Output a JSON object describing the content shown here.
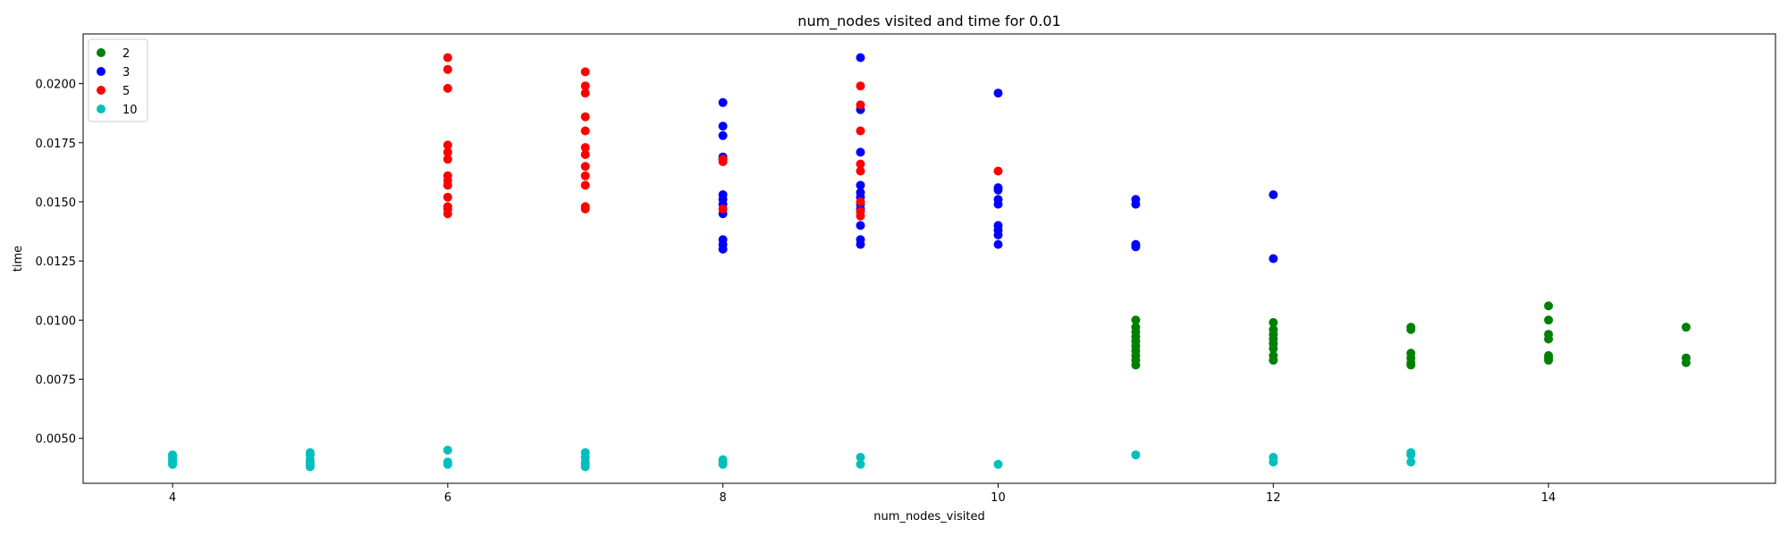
{
  "chart_data": {
    "type": "scatter",
    "title": "num_nodes visited and time for 0.01",
    "xlabel": "num_nodes_visited",
    "ylabel": "time",
    "xlim": [
      3.35,
      15.65
    ],
    "ylim": [
      0.0031,
      0.0221
    ],
    "xticks": [
      4,
      6,
      8,
      10,
      12,
      14
    ],
    "xtick_labels": [
      "4",
      "6",
      "8",
      "10",
      "12",
      "14"
    ],
    "yticks": [
      0.005,
      0.0075,
      0.01,
      0.0125,
      0.015,
      0.0175,
      0.02
    ],
    "ytick_labels": [
      "0.0050",
      "0.0075",
      "0.0100",
      "0.0125",
      "0.0150",
      "0.0175",
      "0.0200"
    ],
    "grid": false,
    "legend_position": "top-left",
    "series": [
      {
        "name": "2",
        "color": "#008000",
        "points": [
          [
            11,
            0.01
          ],
          [
            11,
            0.0097
          ],
          [
            11,
            0.0095
          ],
          [
            11,
            0.0093
          ],
          [
            11,
            0.0091
          ],
          [
            11,
            0.0089
          ],
          [
            11,
            0.0087
          ],
          [
            11,
            0.0085
          ],
          [
            11,
            0.0083
          ],
          [
            11,
            0.0081
          ],
          [
            12,
            0.0099
          ],
          [
            12,
            0.0096
          ],
          [
            12,
            0.0094
          ],
          [
            12,
            0.0092
          ],
          [
            12,
            0.009
          ],
          [
            12,
            0.0088
          ],
          [
            12,
            0.0085
          ],
          [
            12,
            0.0083
          ],
          [
            13,
            0.0097
          ],
          [
            13,
            0.0096
          ],
          [
            13,
            0.0086
          ],
          [
            13,
            0.0084
          ],
          [
            13,
            0.0082
          ],
          [
            13,
            0.0081
          ],
          [
            14,
            0.0106
          ],
          [
            14,
            0.01
          ],
          [
            14,
            0.0094
          ],
          [
            14,
            0.0092
          ],
          [
            14,
            0.0085
          ],
          [
            14,
            0.0084
          ],
          [
            14,
            0.0083
          ],
          [
            15,
            0.0097
          ],
          [
            15,
            0.0084
          ],
          [
            15,
            0.0082
          ]
        ]
      },
      {
        "name": "3",
        "color": "#0000ff",
        "points": [
          [
            8,
            0.0192
          ],
          [
            8,
            0.0182
          ],
          [
            8,
            0.0178
          ],
          [
            8,
            0.0169
          ],
          [
            8,
            0.0168
          ],
          [
            8,
            0.0153
          ],
          [
            8,
            0.0151
          ],
          [
            8,
            0.0149
          ],
          [
            8,
            0.0145
          ],
          [
            8,
            0.0134
          ],
          [
            8,
            0.0132
          ],
          [
            8,
            0.013
          ],
          [
            9,
            0.0211
          ],
          [
            9,
            0.0189
          ],
          [
            9,
            0.0171
          ],
          [
            9,
            0.0157
          ],
          [
            9,
            0.0154
          ],
          [
            9,
            0.0152
          ],
          [
            9,
            0.0149
          ],
          [
            9,
            0.0147
          ],
          [
            9,
            0.014
          ],
          [
            9,
            0.0134
          ],
          [
            9,
            0.0132
          ],
          [
            10,
            0.0196
          ],
          [
            10,
            0.0156
          ],
          [
            10,
            0.0155
          ],
          [
            10,
            0.0151
          ],
          [
            10,
            0.0149
          ],
          [
            10,
            0.014
          ],
          [
            10,
            0.0138
          ],
          [
            10,
            0.0136
          ],
          [
            10,
            0.0132
          ],
          [
            11,
            0.0151
          ],
          [
            11,
            0.0149
          ],
          [
            11,
            0.0132
          ],
          [
            11,
            0.0131
          ],
          [
            12,
            0.0153
          ],
          [
            12,
            0.0126
          ]
        ]
      },
      {
        "name": "5",
        "color": "#ff0000",
        "points": [
          [
            6,
            0.0211
          ],
          [
            6,
            0.0206
          ],
          [
            6,
            0.0198
          ],
          [
            6,
            0.0174
          ],
          [
            6,
            0.0171
          ],
          [
            6,
            0.0168
          ],
          [
            6,
            0.0161
          ],
          [
            6,
            0.0159
          ],
          [
            6,
            0.0157
          ],
          [
            6,
            0.0152
          ],
          [
            6,
            0.0148
          ],
          [
            6,
            0.0147
          ],
          [
            6,
            0.0145
          ],
          [
            7,
            0.0205
          ],
          [
            7,
            0.0199
          ],
          [
            7,
            0.0196
          ],
          [
            7,
            0.0186
          ],
          [
            7,
            0.018
          ],
          [
            7,
            0.0173
          ],
          [
            7,
            0.017
          ],
          [
            7,
            0.0165
          ],
          [
            7,
            0.0161
          ],
          [
            7,
            0.0157
          ],
          [
            7,
            0.0148
          ],
          [
            7,
            0.0147
          ],
          [
            8,
            0.0168
          ],
          [
            8,
            0.0167
          ],
          [
            8,
            0.0147
          ],
          [
            9,
            0.0199
          ],
          [
            9,
            0.0191
          ],
          [
            9,
            0.018
          ],
          [
            9,
            0.0166
          ],
          [
            9,
            0.0163
          ],
          [
            9,
            0.015
          ],
          [
            9,
            0.0146
          ],
          [
            9,
            0.0144
          ],
          [
            10,
            0.0163
          ]
        ]
      },
      {
        "name": "10",
        "color": "#00bfbf",
        "points": [
          [
            4,
            0.0043
          ],
          [
            4,
            0.0042
          ],
          [
            4,
            0.0041
          ],
          [
            4,
            0.004
          ],
          [
            4,
            0.0039
          ],
          [
            4,
            0.0039
          ],
          [
            5,
            0.0044
          ],
          [
            5,
            0.0043
          ],
          [
            5,
            0.0041
          ],
          [
            5,
            0.004
          ],
          [
            5,
            0.0039
          ],
          [
            5,
            0.0038
          ],
          [
            6,
            0.0045
          ],
          [
            6,
            0.004
          ],
          [
            6,
            0.0039
          ],
          [
            7,
            0.0044
          ],
          [
            7,
            0.0042
          ],
          [
            7,
            0.004
          ],
          [
            7,
            0.0039
          ],
          [
            7,
            0.0038
          ],
          [
            8,
            0.0041
          ],
          [
            8,
            0.004
          ],
          [
            8,
            0.0039
          ],
          [
            9,
            0.0042
          ],
          [
            9,
            0.0039
          ],
          [
            10,
            0.0039
          ],
          [
            11,
            0.0043
          ],
          [
            12,
            0.0042
          ],
          [
            12,
            0.004
          ],
          [
            13,
            0.0044
          ],
          [
            13,
            0.0043
          ],
          [
            13,
            0.004
          ]
        ]
      }
    ]
  }
}
